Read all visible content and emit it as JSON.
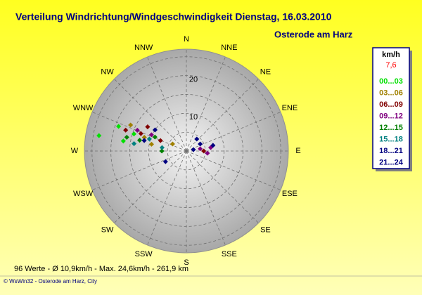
{
  "chart_data": {
    "type": "polar-scatter",
    "title": "Verteilung Windrichtung/Windgeschwindigkeit  Dienstag, 16.03.2010",
    "subtitle": "Osterode am Harz",
    "legend_title": "km/h",
    "current_value": "7,6",
    "summary": "96 Werte   -   Ø 10,9km/h   -   Max. 24,6km/h   -   261,9 km",
    "footer": "© WsWin32  -  Osterode am Harz, City",
    "directions": [
      "N",
      "NNE",
      "NE",
      "ENE",
      "E",
      "ESE",
      "SE",
      "SSE",
      "S",
      "SSW",
      "SW",
      "WSW",
      "W",
      "WNW",
      "NW",
      "NNW"
    ],
    "rlim": [
      0,
      27
    ],
    "rticks": [
      10,
      20
    ],
    "rgrid": [
      5,
      10,
      15,
      20,
      25
    ],
    "series": [
      {
        "name": "00...03",
        "color": "#00e000",
        "theta": [
          280,
          290,
          279,
          288
        ],
        "r": [
          23.5,
          19.1,
          16.9,
          14.6
        ]
      },
      {
        "name": "03...06",
        "color": "#a08000",
        "theta": [
          295,
          288,
          281,
          297
        ],
        "r": [
          16.3,
          11.7,
          9.4,
          4.1
        ]
      },
      {
        "name": "06...09",
        "color": "#800000",
        "theta": [
          289,
          291,
          302,
          292,
          90
        ],
        "r": [
          17.0,
          12.9,
          12.1,
          7.4,
          4.6
        ]
      },
      {
        "name": "09...12",
        "color": "#800080",
        "theta": [
          293,
          295,
          81,
          82,
          96
        ],
        "r": [
          14.1,
          10.2,
          3.7,
          6.5,
          5.6
        ]
      },
      {
        "name": "12...15",
        "color": "#008000",
        "theta": [
          283,
          283,
          294,
          270
        ],
        "r": [
          16.2,
          12.7,
          9.1,
          6.5
        ]
      },
      {
        "name": "15...18",
        "color": "#008080",
        "theta": [
          278,
          288,
          278
        ],
        "r": [
          14.0,
          10.3,
          6.5
        ]
      },
      {
        "name": "18...21",
        "color": "#000080",
        "theta": [
          284,
          243,
          63,
          78
        ],
        "r": [
          11.5,
          6.2,
          4.1,
          7.2
        ]
      },
      {
        "name": "21...24",
        "color": "#000080",
        "theta": [
          304,
          79,
          41
        ],
        "r": [
          10.0,
          1.9,
          4.2
        ]
      }
    ]
  }
}
